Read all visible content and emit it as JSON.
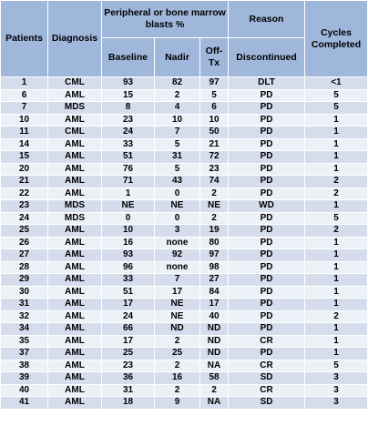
{
  "headers": {
    "patients": "Patients",
    "diagnosis": "Diagnosis",
    "blasts_group": "Peripheral or bone marrow blasts %",
    "baseline": "Baseline",
    "nadir": "Nadir",
    "off_tx": "Off-Tx",
    "reason_top": "Reason",
    "reason_bottom": "Discontinued",
    "cycles": "Cycles Completed"
  },
  "rows": [
    [
      "1",
      "CML",
      "93",
      "82",
      "97",
      "DLT",
      "<1"
    ],
    [
      "6",
      "AML",
      "15",
      "2",
      "5",
      "PD",
      "5"
    ],
    [
      "7",
      "MDS",
      "8",
      "4",
      "6",
      "PD",
      "5"
    ],
    [
      "10",
      "AML",
      "23",
      "10",
      "10",
      "PD",
      "1"
    ],
    [
      "11",
      "CML",
      "24",
      "7",
      "50",
      "PD",
      "1"
    ],
    [
      "14",
      "AML",
      "33",
      "5",
      "21",
      "PD",
      "1"
    ],
    [
      "15",
      "AML",
      "51",
      "31",
      "72",
      "PD",
      "1"
    ],
    [
      "20",
      "AML",
      "76",
      "5",
      "23",
      "PD",
      "1"
    ],
    [
      "21",
      "AML",
      "71",
      "43",
      "74",
      "PD",
      "2"
    ],
    [
      "22",
      "AML",
      "1",
      "0",
      "2",
      "PD",
      "2"
    ],
    [
      "23",
      "MDS",
      "NE",
      "NE",
      "NE",
      "WD",
      "1"
    ],
    [
      "24",
      "MDS",
      "0",
      "0",
      "2",
      "PD",
      "5"
    ],
    [
      "25",
      "AML",
      "10",
      "3",
      "19",
      "PD",
      "2"
    ],
    [
      "26",
      "AML",
      "16",
      "none",
      "80",
      "PD",
      "1"
    ],
    [
      "27",
      "AML",
      "93",
      "92",
      "97",
      "PD",
      "1"
    ],
    [
      "28",
      "AML",
      "96",
      "none",
      "98",
      "PD",
      "1"
    ],
    [
      "29",
      "AML",
      "33",
      "7",
      "27",
      "PD",
      "1"
    ],
    [
      "30",
      "AML",
      "51",
      "17",
      "84",
      "PD",
      "1"
    ],
    [
      "31",
      "AML",
      "17",
      "NE",
      "17",
      "PD",
      "1"
    ],
    [
      "32",
      "AML",
      "24",
      "NE",
      "40",
      "PD",
      "2"
    ],
    [
      "34",
      "AML",
      "66",
      "ND",
      "ND",
      "PD",
      "1"
    ],
    [
      "35",
      "AML",
      "17",
      "2",
      "ND",
      "CR",
      "1"
    ],
    [
      "37",
      "AML",
      "25",
      "25",
      "ND",
      "PD",
      "1"
    ],
    [
      "38",
      "AML",
      "23",
      "2",
      "NA",
      "CR",
      "5"
    ],
    [
      "39",
      "AML",
      "36",
      "16",
      "58",
      "SD",
      "3"
    ],
    [
      "40",
      "AML",
      "31",
      "2",
      "2",
      "CR",
      "3"
    ],
    [
      "41",
      "AML",
      "18",
      "9",
      "NA",
      "SD",
      "3"
    ]
  ],
  "colors": {
    "header_bg": "#9fb7db",
    "row_odd_bg": "#d5dded",
    "row_even_bg": "#ecf0f7"
  }
}
